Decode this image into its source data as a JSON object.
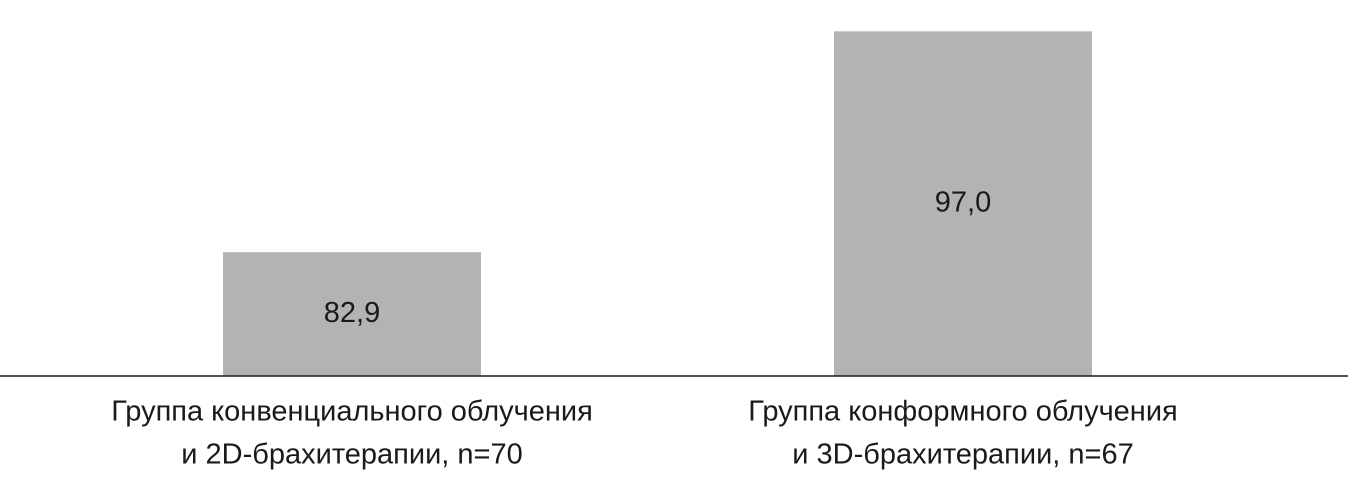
{
  "chart_data": {
    "type": "bar",
    "categories": [
      [
        "Группа конвенциального облучения",
        "и 2D-брахитерапии, n=70"
      ],
      [
        "Группа конформного облучения",
        "и 3D-брахитерапии, n=67"
      ]
    ],
    "values": [
      82.9,
      97.0
    ],
    "value_labels": [
      "82,9",
      "97,0"
    ],
    "color": "#b3b3b3",
    "ylim": [
      75,
      99
    ],
    "grid": false
  }
}
